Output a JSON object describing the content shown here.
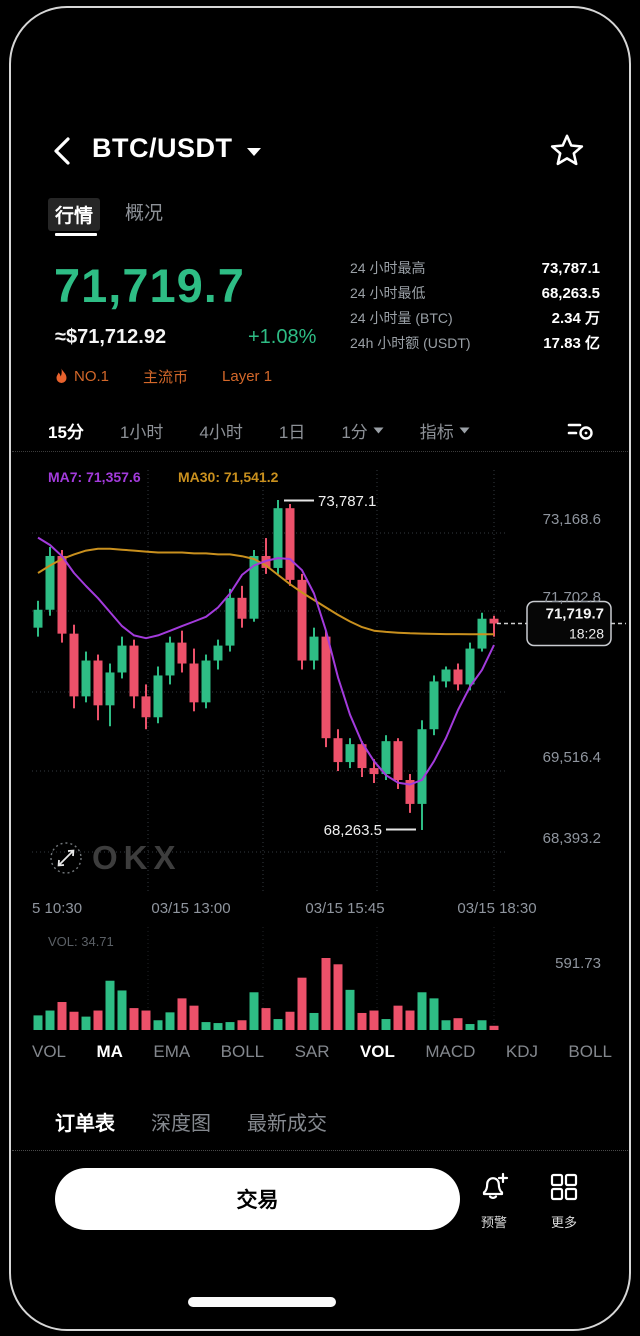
{
  "header": {
    "pair": "BTC/USDT"
  },
  "tabs": [
    {
      "label": "行情",
      "active": true
    },
    {
      "label": "概况",
      "active": false
    }
  ],
  "ticker": {
    "price": "71,719.7",
    "fiat": "≈$71,712.92",
    "change": "+1.08%",
    "up_color": "#2ebd85",
    "badges": [
      {
        "icon": "flame-icon",
        "label": "NO.1"
      },
      {
        "label": "主流币"
      },
      {
        "label": "Layer 1"
      }
    ]
  },
  "stats": [
    {
      "label": "24 小时最高",
      "value": "73,787.1"
    },
    {
      "label": "24 小时最低",
      "value": "68,263.5"
    },
    {
      "label": "24 小时量 (BTC)",
      "value": "2.34 万"
    },
    {
      "label": "24h 小时额 (USDT)",
      "value": "17.83 亿"
    }
  ],
  "timeframes": [
    {
      "label": "15分",
      "active": true
    },
    {
      "label": "1小时",
      "active": false
    },
    {
      "label": "4小时",
      "active": false
    },
    {
      "label": "1日",
      "active": false
    },
    {
      "label": "1分",
      "active": false,
      "dropdown": true
    },
    {
      "label": "指标",
      "active": false,
      "dropdown": true
    }
  ],
  "chart_data": {
    "type": "candlestick",
    "interval": "15m",
    "ma_labels": [
      {
        "text": "MA7: 71,357.6",
        "color": "#a33bdc"
      },
      {
        "text": "MA30: 71,541.2",
        "color": "#c9901e"
      }
    ],
    "y_axis_labels": [
      "73,168.6",
      "71,702.8",
      "69,516.4",
      "68,393.2"
    ],
    "x_axis_labels": [
      "5 10:30",
      "03/15 13:00",
      "03/15 15:45",
      "03/15 18:30"
    ],
    "high_annotation": "73,787.1",
    "low_annotation": "68,263.5",
    "last_price_tag": {
      "price": "71,719.7",
      "time": "18:28"
    },
    "watermark": "OKX",
    "up_color": "#2ebd85",
    "down_color": "#ec516a",
    "y_domain": [
      67950,
      74250
    ],
    "columns": [
      "open",
      "high",
      "low",
      "close"
    ],
    "candles": [
      [
        71650,
        72100,
        71500,
        71950
      ],
      [
        71950,
        73000,
        71850,
        72850
      ],
      [
        72850,
        72950,
        71400,
        71550
      ],
      [
        71550,
        71700,
        70300,
        70500
      ],
      [
        70500,
        71250,
        70400,
        71100
      ],
      [
        71100,
        71200,
        70100,
        70350
      ],
      [
        70350,
        71050,
        70000,
        70900
      ],
      [
        70900,
        71500,
        70800,
        71350
      ],
      [
        71350,
        71450,
        70300,
        70500
      ],
      [
        70500,
        70700,
        69950,
        70150
      ],
      [
        70150,
        71000,
        70050,
        70850
      ],
      [
        70850,
        71500,
        70700,
        71400
      ],
      [
        71400,
        71600,
        70900,
        71050
      ],
      [
        71050,
        71300,
        70250,
        70400
      ],
      [
        70400,
        71200,
        70300,
        71100
      ],
      [
        71100,
        71450,
        70950,
        71350
      ],
      [
        71350,
        72300,
        71250,
        72150
      ],
      [
        72150,
        72350,
        71650,
        71800
      ],
      [
        71800,
        72950,
        71750,
        72850
      ],
      [
        72850,
        73150,
        72550,
        72650
      ],
      [
        72650,
        73787.1,
        72550,
        73650
      ],
      [
        73650,
        73720,
        72350,
        72450
      ],
      [
        72450,
        72550,
        70950,
        71100
      ],
      [
        71100,
        71650,
        70950,
        71500
      ],
      [
        71500,
        71600,
        69650,
        69800
      ],
      [
        69800,
        69950,
        69250,
        69400
      ],
      [
        69400,
        69800,
        69300,
        69700
      ],
      [
        69700,
        69750,
        69150,
        69300
      ],
      [
        69300,
        69450,
        69050,
        69200
      ],
      [
        69200,
        69850,
        69100,
        69750
      ],
      [
        69750,
        69800,
        68950,
        69100
      ],
      [
        69100,
        69200,
        68550,
        68700
      ],
      [
        68700,
        70100,
        68263.5,
        69950
      ],
      [
        69950,
        70850,
        69850,
        70750
      ],
      [
        70750,
        71000,
        70650,
        70950
      ],
      [
        70950,
        71050,
        70600,
        70700
      ],
      [
        70700,
        71400,
        70600,
        71300
      ],
      [
        71300,
        71900,
        71250,
        71800
      ],
      [
        71800,
        71850,
        71500,
        71719.7
      ]
    ],
    "ma7": [
      73158,
      73033,
      72846,
      72565,
      72347,
      72144,
      71910,
      71676,
      71520,
      71473,
      71520,
      71598,
      71676,
      71754,
      71832,
      71988,
      72222,
      72534,
      72690,
      72768,
      72815,
      72799,
      72612,
      72222,
      71598,
      70818,
      70194,
      69726,
      69414,
      69180,
      69055,
      69024,
      69102,
      69414,
      69804,
      70272,
      70662,
      70943,
      71357.6
    ],
    "ma30": [
      72565,
      72690,
      72799,
      72877,
      72940,
      72971,
      72971,
      72955,
      72940,
      72924,
      72908,
      72908,
      72908,
      72893,
      72893,
      72877,
      72877,
      72846,
      72799,
      72690,
      72534,
      72378,
      72238,
      72113,
      71988,
      71863,
      71754,
      71660,
      71600,
      71580,
      71565,
      71555,
      71550,
      71546,
      71543,
      71542,
      71541,
      71541,
      71541.2
    ],
    "volume": {
      "current_label": "VOL: 34.71",
      "axis_max_label": "591.73",
      "max": 591.73,
      "values": [
        120,
        160,
        230,
        150,
        110,
        160,
        405,
        325,
        180,
        160,
        80,
        145,
        260,
        200,
        65,
        57,
        65,
        80,
        310,
        180,
        90,
        150,
        430,
        140,
        591.73,
        540,
        330,
        140,
        160,
        90,
        200,
        160,
        310,
        260,
        80,
        97,
        49,
        80,
        34.71
      ]
    }
  },
  "indicator_tabs": [
    {
      "label": "VOL",
      "active": false
    },
    {
      "label": "MA",
      "active": true
    },
    {
      "label": "EMA",
      "active": false
    },
    {
      "label": "BOLL",
      "active": false
    },
    {
      "label": "SAR",
      "active": false
    },
    {
      "label": "VOL",
      "active": true
    },
    {
      "label": "MACD",
      "active": false
    },
    {
      "label": "KDJ",
      "active": false
    },
    {
      "label": "BOLL",
      "active": false
    }
  ],
  "bottom_tabs": [
    {
      "label": "订单表",
      "active": true
    },
    {
      "label": "深度图",
      "active": false
    },
    {
      "label": "最新成交",
      "active": false
    }
  ],
  "actions": {
    "trade_label": "交易",
    "alert_label": "预警",
    "more_label": "更多"
  }
}
